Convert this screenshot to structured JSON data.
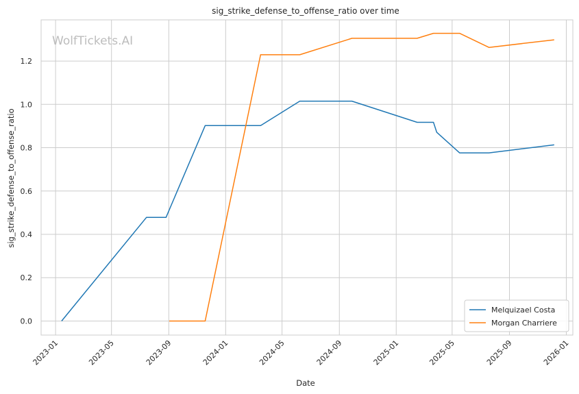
{
  "chart_data": {
    "type": "line",
    "title": "sig_strike_defense_to_offense_ratio over time",
    "xlabel": "Date",
    "ylabel": "sig_strike_defense_to_offense_ratio",
    "watermark": "WolfTickets.AI",
    "x_range": [
      "2022-12-01",
      "2026-01-15"
    ],
    "y_range": [
      -0.065,
      1.39
    ],
    "x_ticks": [
      {
        "date": "2023-01-01",
        "label": "2023-01"
      },
      {
        "date": "2023-05-01",
        "label": "2023-05"
      },
      {
        "date": "2023-09-01",
        "label": "2023-09"
      },
      {
        "date": "2024-01-01",
        "label": "2024-01"
      },
      {
        "date": "2024-05-01",
        "label": "2024-05"
      },
      {
        "date": "2024-09-01",
        "label": "2024-09"
      },
      {
        "date": "2025-01-01",
        "label": "2025-01"
      },
      {
        "date": "2025-05-01",
        "label": "2025-05"
      },
      {
        "date": "2025-09-01",
        "label": "2025-09"
      },
      {
        "date": "2026-01-01",
        "label": "2026-01"
      }
    ],
    "y_ticks": [
      {
        "value": 0.0,
        "label": "0.0"
      },
      {
        "value": 0.2,
        "label": "0.2"
      },
      {
        "value": 0.4,
        "label": "0.4"
      },
      {
        "value": 0.6,
        "label": "0.6"
      },
      {
        "value": 0.8,
        "label": "0.8"
      },
      {
        "value": 1.0,
        "label": "1.0"
      },
      {
        "value": 1.2,
        "label": "1.2"
      }
    ],
    "grid": true,
    "legend_position": "bottom-right",
    "series": [
      {
        "name": "Melquizael Costa",
        "color": "#1f77b4",
        "points": [
          {
            "x": "2023-01-14",
            "y": 0.0
          },
          {
            "x": "2023-07-15",
            "y": 0.478
          },
          {
            "x": "2023-08-26",
            "y": 0.478
          },
          {
            "x": "2023-11-18",
            "y": 0.902
          },
          {
            "x": "2024-03-16",
            "y": 0.902
          },
          {
            "x": "2024-06-08",
            "y": 1.015
          },
          {
            "x": "2024-09-28",
            "y": 1.015
          },
          {
            "x": "2025-02-15",
            "y": 0.917
          },
          {
            "x": "2025-03-22",
            "y": 0.917
          },
          {
            "x": "2025-03-29",
            "y": 0.871
          },
          {
            "x": "2025-05-17",
            "y": 0.776
          },
          {
            "x": "2025-07-19",
            "y": 0.776
          },
          {
            "x": "2025-12-06",
            "y": 0.813
          }
        ]
      },
      {
        "name": "Morgan Charriere",
        "color": "#ff7f0e",
        "points": [
          {
            "x": "2023-09-02",
            "y": 0.0
          },
          {
            "x": "2023-11-18",
            "y": 0.0
          },
          {
            "x": "2024-03-16",
            "y": 1.229
          },
          {
            "x": "2024-06-08",
            "y": 1.229
          },
          {
            "x": "2024-09-28",
            "y": 1.305
          },
          {
            "x": "2025-02-15",
            "y": 1.305
          },
          {
            "x": "2025-03-22",
            "y": 1.328
          },
          {
            "x": "2025-05-17",
            "y": 1.328
          },
          {
            "x": "2025-07-19",
            "y": 1.263
          },
          {
            "x": "2025-12-06",
            "y": 1.298
          }
        ]
      }
    ]
  }
}
